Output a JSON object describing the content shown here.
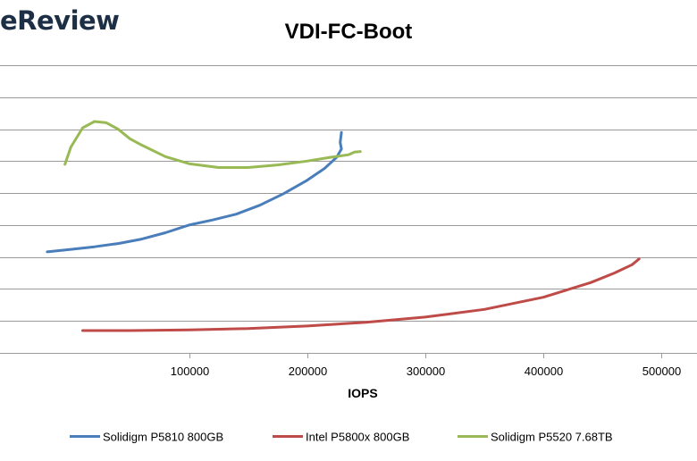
{
  "logo_text": "eReview",
  "chart_data": {
    "type": "line",
    "title": "VDI-FC-Boot",
    "xlabel": "IOPS",
    "ylabel": "",
    "xlim": [
      -60000,
      530000
    ],
    "ylim": [
      0,
      0.45
    ],
    "x_ticks": [
      100000,
      200000,
      300000,
      400000,
      500000
    ],
    "x_tick_labels": [
      "100000",
      "200000",
      "300000",
      "400000",
      "500000"
    ],
    "y_gridlines": [
      0.05,
      0.1,
      0.15,
      0.2,
      0.25,
      0.3,
      0.35,
      0.4,
      0.45
    ],
    "grid": true,
    "legend_position": "bottom",
    "colors": {
      "Solidigm P5810 800GB": "#4a7ebb",
      "Intel P5800x 800GB": "#be4b48",
      "Solidigm P5520 7.68TB": "#98b954"
    },
    "series": [
      {
        "name": "Solidigm P5810 800GB",
        "x": [
          -20000,
          0,
          20000,
          40000,
          60000,
          80000,
          100000,
          120000,
          140000,
          160000,
          180000,
          200000,
          215000,
          225000,
          229000,
          228000,
          229000
        ],
        "y": [
          0.158,
          0.162,
          0.166,
          0.171,
          0.178,
          0.188,
          0.2,
          0.208,
          0.217,
          0.231,
          0.249,
          0.27,
          0.289,
          0.306,
          0.319,
          0.329,
          0.345
        ]
      },
      {
        "name": "Intel P5800x 800GB",
        "x": [
          10000,
          50000,
          100000,
          150000,
          200000,
          250000,
          300000,
          350000,
          400000,
          440000,
          460000,
          475000,
          481000
        ],
        "y": [
          0.035,
          0.035,
          0.036,
          0.038,
          0.042,
          0.048,
          0.056,
          0.068,
          0.087,
          0.11,
          0.125,
          0.138,
          0.147
        ]
      },
      {
        "name": "Solidigm P5520 7.68TB",
        "x": [
          -5000,
          0,
          10000,
          20000,
          30000,
          40000,
          50000,
          60000,
          80000,
          100000,
          125000,
          150000,
          175000,
          200000,
          220000,
          235000,
          240000,
          245000
        ],
        "y": [
          0.295,
          0.322,
          0.352,
          0.362,
          0.36,
          0.35,
          0.335,
          0.325,
          0.307,
          0.296,
          0.29,
          0.29,
          0.294,
          0.3,
          0.306,
          0.31,
          0.314,
          0.315
        ]
      }
    ]
  }
}
